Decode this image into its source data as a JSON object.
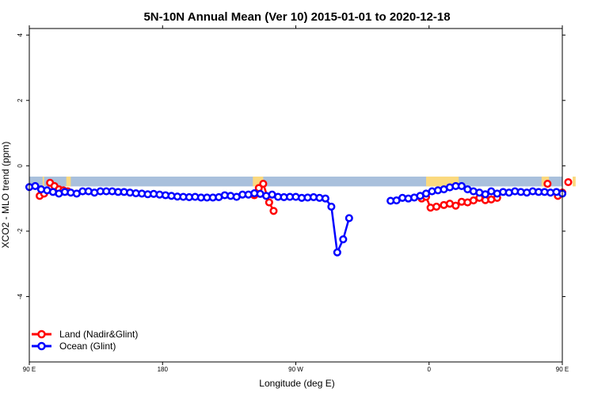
{
  "chart_data": {
    "type": "line",
    "title": "5N-10N Annual Mean (Ver 10)   2015-01-01 to 2020-12-18",
    "xlabel": "Longitude (deg E)",
    "ylabel": "XCO2 - MLO trend (ppm)",
    "xlim": [
      90,
      450
    ],
    "ylim": [
      -6,
      4.2
    ],
    "grid": false,
    "legend_position": "bottom-left",
    "x_ticks": [
      {
        "value": 90,
        "label": "90 E"
      },
      {
        "value": 180,
        "label": "180"
      },
      {
        "value": 270,
        "label": "90 W"
      },
      {
        "value": 360,
        "label": "0"
      },
      {
        "value": 450,
        "label": "90 E"
      },
      {
        "value": 540,
        "label": "180"
      }
    ],
    "y_ticks": [
      {
        "value": 4,
        "label": "4"
      },
      {
        "value": 2,
        "label": "2"
      },
      {
        "value": 0,
        "label": "0"
      },
      {
        "value": -2,
        "label": "-2"
      },
      {
        "value": -4,
        "label": "-4"
      }
    ],
    "land_mask_strip": {
      "y_top": -0.33,
      "y_bottom": -0.63,
      "ocean_color": "#a9c0dc",
      "land_color": "#fbd97e",
      "land_segments": [
        [
          99,
          100
        ],
        [
          115,
          118
        ],
        [
          241,
          248
        ],
        [
          358,
          380
        ],
        [
          436,
          441
        ],
        [
          457,
          459
        ],
        [
          473,
          476
        ]
      ]
    },
    "series": [
      {
        "name": "Land (Nadir&Glint)",
        "color": "#ff0000",
        "segments": [
          [
            [
              97,
              -0.92
            ],
            [
              100,
              -0.85
            ]
          ],
          [
            [
              104,
              -0.52
            ],
            [
              107,
              -0.62
            ],
            [
              110,
              -0.72
            ]
          ],
          [
            [
              113,
              -0.75
            ],
            [
              116,
              -0.78
            ]
          ],
          [
            [
              242,
              -0.9
            ],
            [
              245,
              -0.68
            ],
            [
              248,
              -0.55
            ],
            [
              252,
              -1.12
            ],
            [
              255,
              -1.38
            ]
          ],
          [
            [
              355,
              -1.0
            ],
            [
              358,
              -0.95
            ],
            [
              361,
              -1.28
            ],
            [
              365,
              -1.25
            ],
            [
              370,
              -1.2
            ],
            [
              374,
              -1.16
            ],
            [
              378,
              -1.22
            ],
            [
              382,
              -1.1
            ],
            [
              386,
              -1.12
            ],
            [
              390,
              -1.06
            ],
            [
              394,
              -0.98
            ],
            [
              398,
              -1.05
            ],
            [
              402,
              -1.03
            ],
            [
              406,
              -0.98
            ]
          ],
          [
            [
              440,
              -0.55
            ]
          ],
          [
            [
              447,
              -0.92
            ],
            [
              450,
              -0.82
            ]
          ],
          [
            [
              454,
              -0.5
            ]
          ],
          [
            [
              477,
              -0.76
            ],
            [
              481,
              -0.8
            ]
          ]
        ]
      },
      {
        "name": "Ocean (Glint)",
        "color": "#0000ff",
        "segments": [
          [
            [
              90,
              -0.65
            ],
            [
              94,
              -0.62
            ],
            [
              98,
              -0.72
            ],
            [
              102,
              -0.75
            ],
            [
              106,
              -0.8
            ],
            [
              110,
              -0.85
            ],
            [
              114,
              -0.8
            ],
            [
              118,
              -0.82
            ],
            [
              122,
              -0.85
            ],
            [
              126,
              -0.78
            ],
            [
              130,
              -0.78
            ],
            [
              134,
              -0.82
            ],
            [
              138,
              -0.78
            ],
            [
              142,
              -0.78
            ],
            [
              146,
              -0.78
            ],
            [
              150,
              -0.8
            ],
            [
              154,
              -0.8
            ],
            [
              158,
              -0.82
            ],
            [
              162,
              -0.84
            ],
            [
              166,
              -0.85
            ],
            [
              170,
              -0.87
            ],
            [
              174,
              -0.86
            ],
            [
              178,
              -0.88
            ],
            [
              182,
              -0.9
            ],
            [
              186,
              -0.92
            ],
            [
              190,
              -0.94
            ],
            [
              194,
              -0.95
            ],
            [
              198,
              -0.96
            ],
            [
              202,
              -0.95
            ],
            [
              206,
              -0.97
            ],
            [
              210,
              -0.97
            ],
            [
              214,
              -0.97
            ],
            [
              218,
              -0.96
            ],
            [
              222,
              -0.9
            ],
            [
              226,
              -0.92
            ],
            [
              230,
              -0.95
            ],
            [
              234,
              -0.88
            ],
            [
              238,
              -0.88
            ],
            [
              242,
              -0.84
            ],
            [
              246,
              -0.86
            ],
            [
              250,
              -0.92
            ],
            [
              254,
              -0.88
            ],
            [
              258,
              -0.95
            ],
            [
              262,
              -0.96
            ],
            [
              266,
              -0.95
            ],
            [
              270,
              -0.95
            ],
            [
              274,
              -0.98
            ],
            [
              278,
              -0.97
            ],
            [
              282,
              -0.96
            ],
            [
              286,
              -0.98
            ],
            [
              290,
              -1.0
            ],
            [
              294,
              -1.25
            ],
            [
              298,
              -2.65
            ],
            [
              302,
              -2.25
            ],
            [
              306,
              -1.6
            ]
          ],
          [
            [
              334,
              -1.07
            ],
            [
              338,
              -1.06
            ],
            [
              342,
              -0.98
            ],
            [
              346,
              -1.0
            ],
            [
              350,
              -0.97
            ],
            [
              354,
              -0.92
            ],
            [
              358,
              -0.85
            ],
            [
              362,
              -0.78
            ],
            [
              366,
              -0.75
            ],
            [
              370,
              -0.72
            ],
            [
              374,
              -0.66
            ],
            [
              378,
              -0.62
            ],
            [
              382,
              -0.62
            ],
            [
              386,
              -0.72
            ],
            [
              390,
              -0.78
            ],
            [
              394,
              -0.82
            ],
            [
              398,
              -0.87
            ],
            [
              402,
              -0.78
            ],
            [
              406,
              -0.85
            ],
            [
              410,
              -0.8
            ],
            [
              414,
              -0.82
            ],
            [
              418,
              -0.78
            ],
            [
              422,
              -0.8
            ],
            [
              426,
              -0.82
            ],
            [
              430,
              -0.78
            ],
            [
              434,
              -0.8
            ],
            [
              438,
              -0.8
            ],
            [
              442,
              -0.82
            ],
            [
              446,
              -0.8
            ],
            [
              450,
              -0.85
            ]
          ]
        ]
      }
    ]
  }
}
